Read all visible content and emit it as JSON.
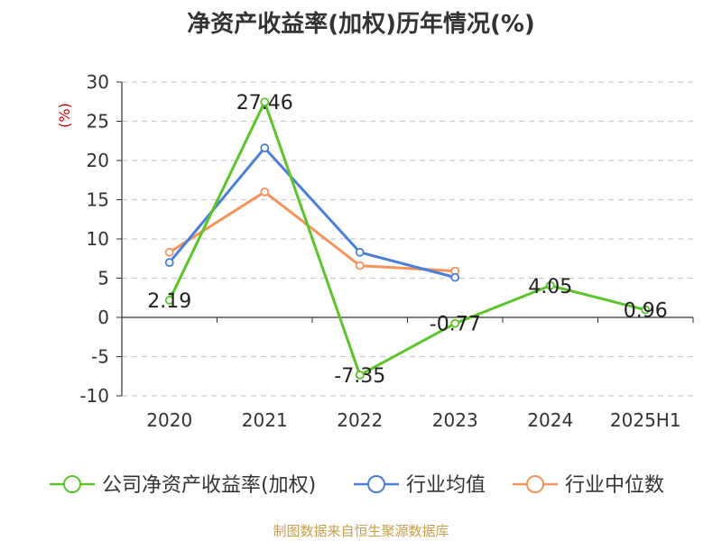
{
  "chart_data": {
    "type": "line",
    "title": "净资产收益率(加权)历年情况(%)",
    "ylabel": "(%)",
    "categories": [
      "2020",
      "2021",
      "2022",
      "2023",
      "2024",
      "2025H1"
    ],
    "ylim": [
      -10,
      30
    ],
    "yticks": [
      -10,
      -5,
      0,
      5,
      10,
      15,
      20,
      25,
      30
    ],
    "grid": true,
    "legend_position": "bottom",
    "series": [
      {
        "name": "公司净资产收益率(加权)",
        "color": "#5cc42b",
        "values": [
          2.19,
          27.46,
          -7.35,
          -0.77,
          4.05,
          0.96
        ],
        "labels": [
          "2.19",
          "27.46",
          "-7.35",
          "-0.77",
          "4.05",
          "0.96"
        ]
      },
      {
        "name": "行业均值",
        "color": "#4a7ed8",
        "values": [
          7.0,
          21.6,
          8.3,
          5.1,
          null,
          null
        ]
      },
      {
        "name": "行业中位数",
        "color": "#f4935a",
        "values": [
          8.3,
          16.0,
          6.6,
          5.9,
          null,
          null
        ]
      }
    ]
  },
  "source": "制图数据来自恒生聚源数据库"
}
